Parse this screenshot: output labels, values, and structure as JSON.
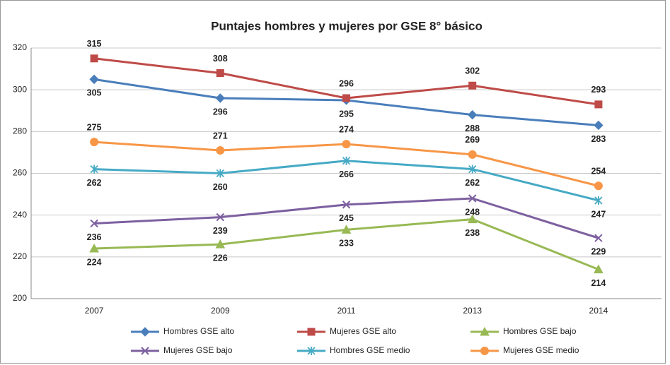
{
  "chart_data": {
    "type": "line",
    "title": "Puntajes hombres y mujeres por GSE 8° básico",
    "categories": [
      "2007",
      "2009",
      "2011",
      "2013",
      "2014"
    ],
    "series": [
      {
        "name": "Hombres GSE alto",
        "color": "#4a7ebb",
        "marker": "diamond",
        "values": [
          305,
          296,
          295,
          288,
          283
        ]
      },
      {
        "name": "Mujeres GSE alto",
        "color": "#be4b48",
        "marker": "square",
        "values": [
          315,
          308,
          296,
          302,
          293
        ]
      },
      {
        "name": "Hombres GSE bajo",
        "color": "#98b954",
        "marker": "triangle",
        "values": [
          224,
          226,
          233,
          238,
          214
        ]
      },
      {
        "name": "Mujeres GSE bajo",
        "color": "#7d60a0",
        "marker": "x",
        "values": [
          236,
          239,
          245,
          248,
          229
        ]
      },
      {
        "name": "Hombres GSE medio",
        "color": "#46aac5",
        "marker": "star",
        "values": [
          262,
          260,
          266,
          262,
          247
        ]
      },
      {
        "name": "Mujeres GSE medio",
        "color": "#f79646",
        "marker": "circle",
        "values": [
          275,
          271,
          274,
          269,
          254
        ]
      }
    ],
    "ylim": [
      200,
      320
    ],
    "yticks": [
      200,
      220,
      240,
      260,
      280,
      300,
      320
    ],
    "grid": true,
    "legend": "bottom"
  }
}
